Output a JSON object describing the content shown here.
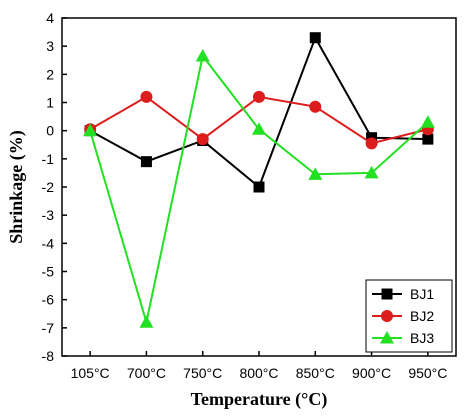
{
  "chart_data": {
    "type": "line",
    "categories": [
      "105°C",
      "700°C",
      "750°C",
      "800°C",
      "850°C",
      "900°C",
      "950°C"
    ],
    "xlabel": "Temperature (°C)",
    "ylabel": "Shrinkage (%)",
    "ylim": [
      -8,
      4
    ],
    "yticks": [
      4,
      3,
      2,
      1,
      0,
      -1,
      -2,
      -3,
      -4,
      -5,
      -6,
      -7,
      -8
    ],
    "grid": false,
    "legend": "bottom-right",
    "series": [
      {
        "name": "BJ1",
        "color": "#000000",
        "marker": "square",
        "values": [
          0.0,
          -1.1,
          -0.35,
          -2.0,
          3.3,
          -0.25,
          -0.3
        ]
      },
      {
        "name": "BJ2",
        "color": "#dd1c1c",
        "marker": "circle",
        "values": [
          0.05,
          1.2,
          -0.3,
          1.2,
          0.85,
          -0.45,
          0.05
        ]
      },
      {
        "name": "BJ3",
        "color": "#22e022",
        "marker": "triangle",
        "values": [
          0.0,
          -6.8,
          2.65,
          0.05,
          -1.55,
          -1.5,
          0.3
        ]
      }
    ]
  }
}
